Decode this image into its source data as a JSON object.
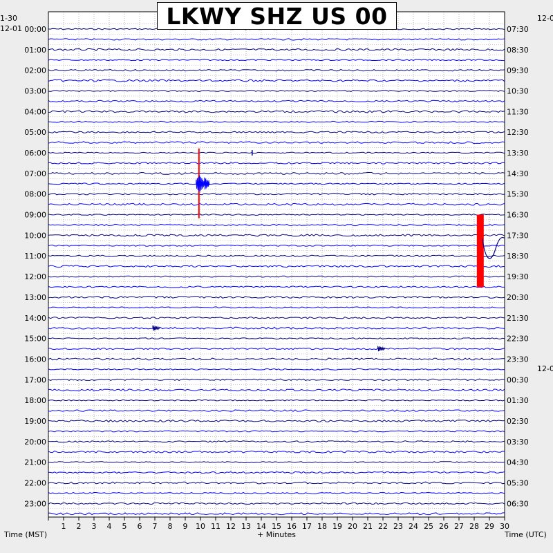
{
  "title": "LKWY SHZ US 00",
  "corner_labels": {
    "top_left_date": "1-30",
    "first_row_date": "12-01",
    "top_right_date": "12-0",
    "right_mid_date": "12-0"
  },
  "footer": {
    "left_axis_label": "Time (MST)",
    "x_axis_label": "+ Minutes",
    "right_axis_label": "Time (UTC)"
  },
  "colors": {
    "trace_dark": "#000080",
    "trace_blue": "#0000ff",
    "clip_red": "#ff0000",
    "background": "#ffffff",
    "grid": "#000000"
  },
  "chart_data": {
    "type": "helicorder",
    "station": "LKWY",
    "channel": "SHZ",
    "network": "US",
    "location": "00",
    "x_ticks": [
      "1",
      "2",
      "3",
      "4",
      "5",
      "6",
      "7",
      "8",
      "9",
      "10",
      "11",
      "12",
      "13",
      "14",
      "15",
      "16",
      "17",
      "18",
      "19",
      "20",
      "21",
      "22",
      "23",
      "24",
      "25",
      "26",
      "27",
      "28",
      "29",
      "30"
    ],
    "xlim": [
      0,
      30
    ],
    "row_minutes": 30,
    "row_count": 48,
    "left_time_labels": [
      "00:00",
      "01:00",
      "02:00",
      "03:00",
      "04:00",
      "05:00",
      "06:00",
      "07:00",
      "08:00",
      "09:00",
      "10:00",
      "11:00",
      "12:00",
      "13:00",
      "14:00",
      "15:00",
      "16:00",
      "17:00",
      "18:00",
      "19:00",
      "20:00",
      "21:00",
      "22:00",
      "23:00"
    ],
    "right_time_labels": [
      "07:30",
      "08:30",
      "09:30",
      "10:30",
      "11:30",
      "12:30",
      "13:30",
      "14:30",
      "15:30",
      "16:30",
      "17:30",
      "18:30",
      "19:30",
      "20:30",
      "21:30",
      "22:30",
      "23:30",
      "00:30",
      "01:30",
      "02:30",
      "03:30",
      "04:30",
      "05:30",
      "06:30"
    ],
    "events": [
      {
        "row": 15,
        "minute": 9.9,
        "kind": "earthquake",
        "clipped": true
      },
      {
        "row": 12,
        "minute": 13.4,
        "kind": "spike",
        "clipped": false
      },
      {
        "row": 19,
        "minute": 28.4,
        "kind": "calibration pulse",
        "clipped": true
      },
      {
        "row": 21,
        "minute": 28.4,
        "kind": "long period swing",
        "clipped": false
      },
      {
        "row": 29,
        "minute": 7.0,
        "kind": "small event",
        "clipped": false
      },
      {
        "row": 31,
        "minute": 21.8,
        "kind": "small event",
        "clipped": false
      }
    ]
  }
}
